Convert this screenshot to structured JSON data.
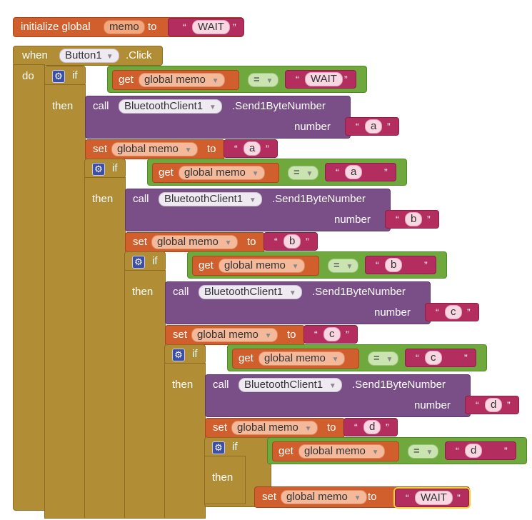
{
  "init": {
    "label": "initialize global",
    "var": "memo",
    "to": "to",
    "value": "WAIT"
  },
  "event": {
    "when": "when",
    "component": "Button1",
    "event": ".Click",
    "do": "do"
  },
  "kw": {
    "if": "if",
    "then": "then",
    "get": "get",
    "set": "set",
    "call": "call",
    "to": "to",
    "number": "number",
    "eq": "="
  },
  "var_global": "global memo",
  "bt": {
    "component": "BluetoothClient1",
    "method": ".Send1ByteNumber"
  },
  "levels": [
    {
      "cmp": "WAIT",
      "send": "a",
      "set": "a"
    },
    {
      "cmp": "a",
      "send": "b",
      "set": "b"
    },
    {
      "cmp": "b",
      "send": "c",
      "set": "c"
    },
    {
      "cmp": "c",
      "send": "d",
      "set": "d"
    },
    {
      "cmp": "d",
      "final_set": "WAIT"
    }
  ],
  "colors": {
    "variable": "#d05f2d",
    "control": "#b18e35",
    "component": "#7a4e86",
    "logic": "#6fa83d",
    "text": "#b32d5e"
  }
}
